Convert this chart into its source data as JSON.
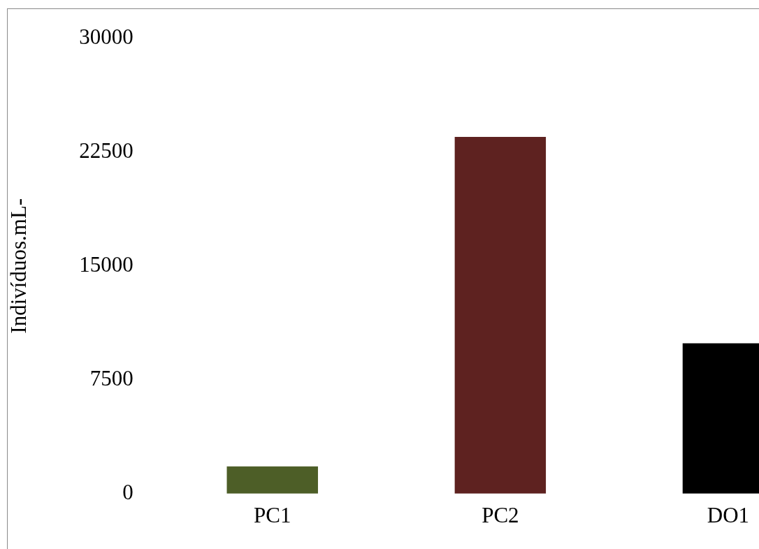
{
  "chart_data": {
    "type": "bar",
    "ylabel": "Indivíduos.mL-",
    "categories": [
      "PC1",
      "PC2",
      "DO1"
    ],
    "values": [
      1800,
      23500,
      9900
    ],
    "colors": [
      "#4d5e27",
      "#5e2220",
      "#000000"
    ],
    "ylim": [
      0,
      30000
    ],
    "yticks": [
      0,
      7500,
      15000,
      22500,
      30000
    ],
    "grid": false,
    "legend": false
  }
}
